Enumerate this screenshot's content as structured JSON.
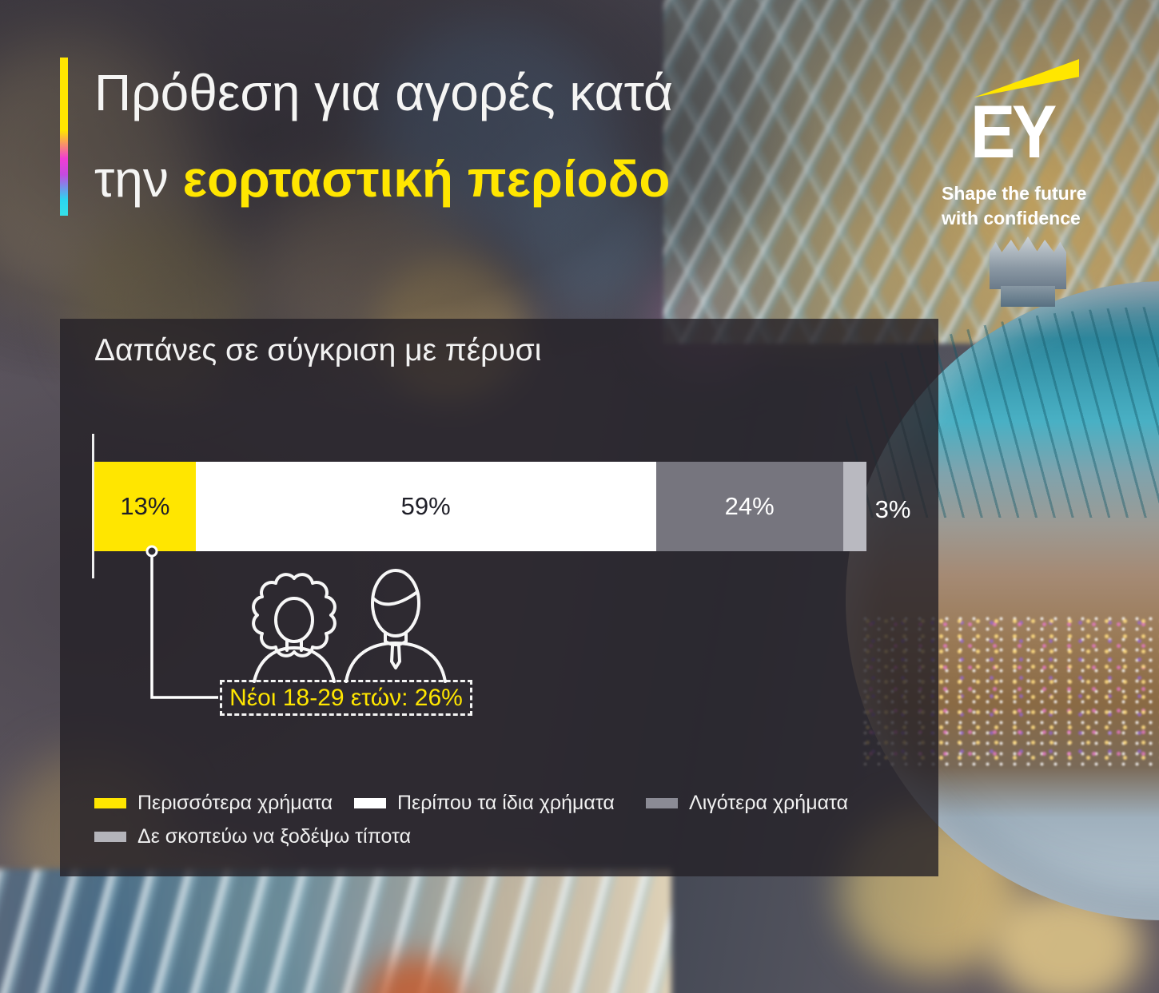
{
  "header": {
    "title_line1": "Πρόθεση για αγορές κατά",
    "title_line2_prefix": "την ",
    "title_line2_highlight": "εορταστική περίοδο"
  },
  "logo": {
    "name": "EY",
    "tagline_line1": "Shape the future",
    "tagline_line2": "with confidence"
  },
  "panel": {
    "title": "Δαπάνες σε σύγκριση με πέρυσι"
  },
  "chart_data": {
    "type": "bar",
    "orientation": "horizontal-stacked",
    "title": "Δαπάνες σε σύγκριση με πέρυσι",
    "xlim": [
      0,
      100
    ],
    "grid": false,
    "legend_position": "bottom",
    "segments": [
      {
        "label": "Περισσότερα χρήματα",
        "value": 13,
        "display": "13%",
        "color": "#ffe600",
        "text_color": "#1f1f28"
      },
      {
        "label": "Περίπου τα ίδια χρήματα",
        "value": 59,
        "display": "59%",
        "color": "#ffffff",
        "text_color": "#1f1f28"
      },
      {
        "label": "Λιγότερα χρήματα",
        "value": 24,
        "display": "24%",
        "color": "#76757e",
        "text_color": "#ffffff"
      },
      {
        "label": "Δε σκοπεύω να ξοδέψω τίποτα",
        "value": 3,
        "display": "3%",
        "color": "#b9b9c0",
        "text_color": "#ffffff",
        "label_outside": true
      }
    ],
    "annotation": {
      "text": "Νέοι 18-29 ετών: 26%",
      "applies_to_segment": "Περισσότερα χρήματα"
    }
  },
  "legend": {
    "items": [
      {
        "label": "Περισσότερα χρήματα",
        "color": "#ffe600"
      },
      {
        "label": "Περίπου τα ίδια χρήματα",
        "color": "#ffffff"
      },
      {
        "label": "Λιγότερα χρήματα",
        "color": "#8b8b95"
      },
      {
        "label": "Δε σκοπεύω να ξοδέψω τίποτα",
        "color": "#b4b4ba"
      }
    ]
  },
  "icons": {
    "beam": "ey-beam-icon",
    "people": [
      "woman-icon",
      "man-icon"
    ],
    "marker": "marker-dot-icon"
  },
  "colors": {
    "ey_yellow": "#ffe600",
    "accent_gradient": [
      "#ffe600",
      "#f23dd4",
      "#2bd6f0"
    ],
    "panel_overlay": "rgba(36,33,39,0.8)",
    "bar_dark_gray": "#76757e",
    "bar_light_gray": "#b9b9c0",
    "text_white": "#f5f5f4"
  }
}
